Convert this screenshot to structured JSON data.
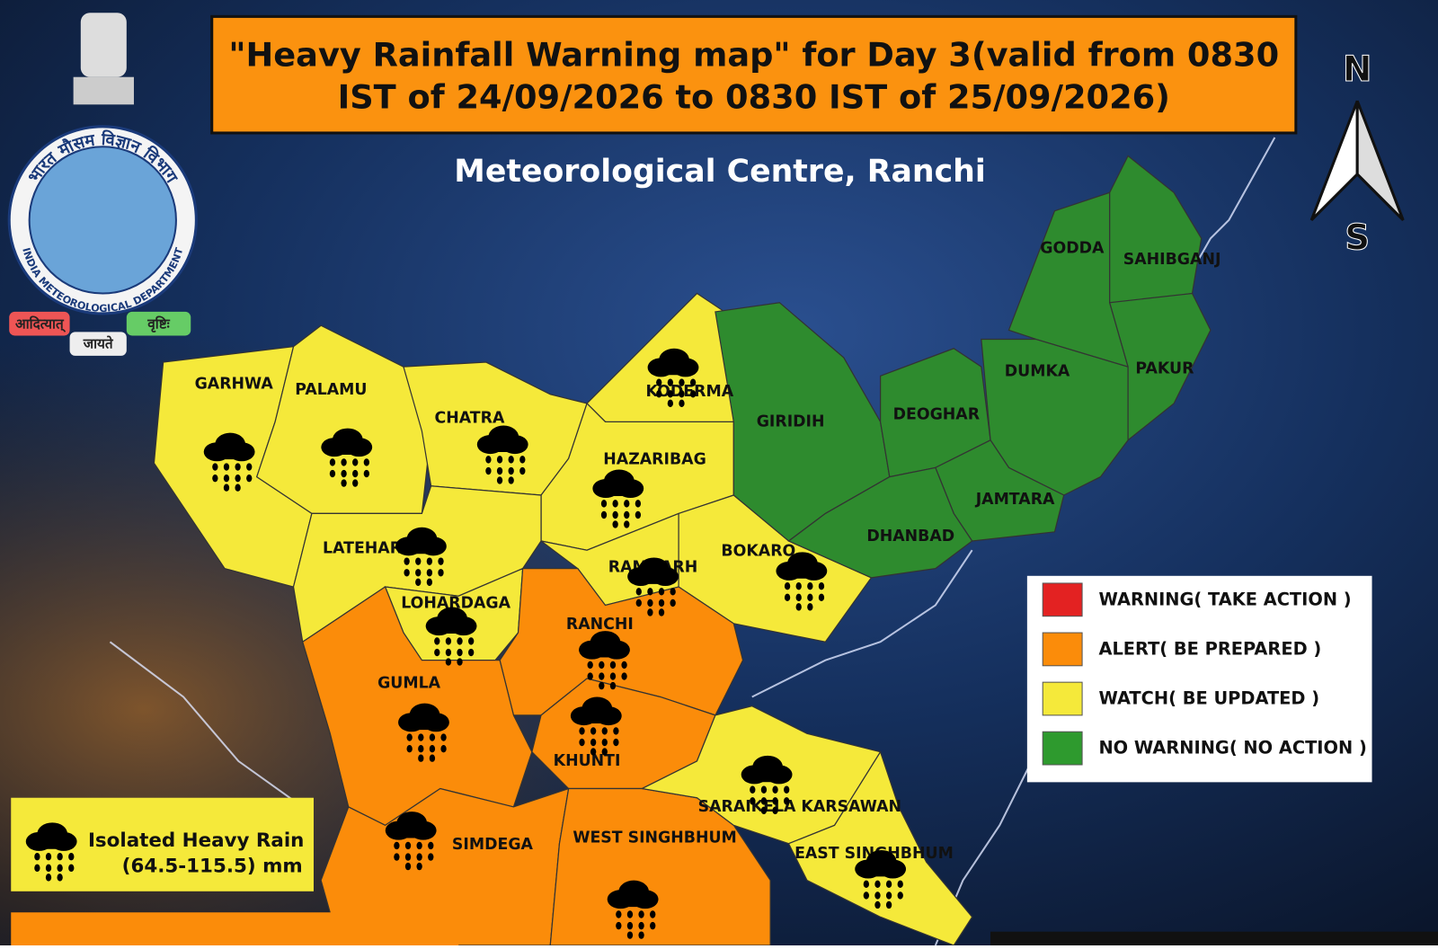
{
  "header": {
    "title_lines": [
      "\"Heavy Rainfall Warning map\" for Day 3(valid from 0830",
      "IST of  24/09/2026 to 0830 IST of 25/09/2026)"
    ],
    "subtitle": "Meteorological Centre, Ranchi"
  },
  "logo": {
    "hindi_name": "भारत मौसम विज्ञान विभाग",
    "english_name": "INDIA METEOROLOGICAL DEPARTMENT",
    "motto": [
      "आदित्यात्",
      "जायते",
      "वृष्टिः"
    ]
  },
  "compass": {
    "north": "N",
    "south": "S"
  },
  "districts": [
    {
      "name": "GARHWA",
      "color": "#f5e93a",
      "rain": true
    },
    {
      "name": "PALAMU",
      "color": "#f5e93a",
      "rain": true
    },
    {
      "name": "CHATRA",
      "color": "#f5e93a",
      "rain": true
    },
    {
      "name": "KODERMA",
      "color": "#f5e93a",
      "rain": true
    },
    {
      "name": "HAZARIBAG",
      "color": "#f5e93a",
      "rain": true
    },
    {
      "name": "LATEHAR",
      "color": "#f5e93a",
      "rain": true
    },
    {
      "name": "LOHARDAGA",
      "color": "#f5e93a",
      "rain": true
    },
    {
      "name": "RAMGARH",
      "color": "#f5e93a",
      "rain": true
    },
    {
      "name": "BOKARO",
      "color": "#f5e93a",
      "rain": true
    },
    {
      "name": "GIRIDIH",
      "color": "#2e8b2e",
      "rain": false
    },
    {
      "name": "DEOGHAR",
      "color": "#2e8b2e",
      "rain": false
    },
    {
      "name": "DUMKA",
      "color": "#2e8b2e",
      "rain": false
    },
    {
      "name": "JAMTARA",
      "color": "#2e8b2e",
      "rain": false
    },
    {
      "name": "DHANBAD",
      "color": "#2e8b2e",
      "rain": false
    },
    {
      "name": "GODDA",
      "color": "#2e8b2e",
      "rain": false
    },
    {
      "name": "SAHIBGANJ",
      "color": "#2e8b2e",
      "rain": false
    },
    {
      "name": "PAKUR",
      "color": "#2e8b2e",
      "rain": false
    },
    {
      "name": "RANCHI",
      "color": "#fb8c0a",
      "rain": true
    },
    {
      "name": "GUMLA",
      "color": "#fb8c0a",
      "rain": true
    },
    {
      "name": "KHUNTI",
      "color": "#fb8c0a",
      "rain": true
    },
    {
      "name": "SIMDEGA",
      "color": "#fb8c0a",
      "rain": true
    },
    {
      "name": "WEST SINGHBHUM",
      "color": "#fb8c0a",
      "rain": true
    },
    {
      "name": "SARAIKELA KARSAWAN",
      "color": "#f5e93a",
      "rain": true
    },
    {
      "name": "EAST SINGHBHUM",
      "color": "#f5e93a",
      "rain": true
    }
  ],
  "legend": [
    {
      "label": "WARNING( TAKE ACTION )",
      "color": "#e32222"
    },
    {
      "label": "ALERT( BE PREPARED )",
      "color": "#fb8c0a"
    },
    {
      "label": "WATCH( BE UPDATED )",
      "color": "#f5e93a"
    },
    {
      "label": "NO WARNING( NO ACTION )",
      "color": "#2e9a2e"
    }
  ],
  "rain_legend": {
    "label": "Isolated Heavy Rain",
    "range": "(64.5-115.5) mm"
  }
}
